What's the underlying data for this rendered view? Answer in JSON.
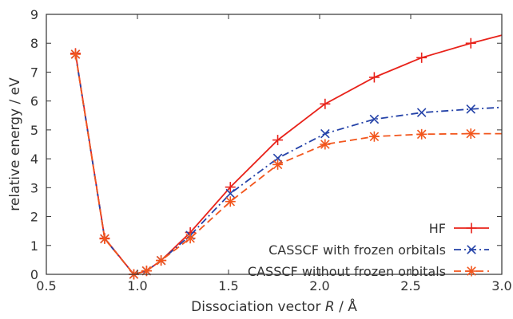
{
  "chart_data": {
    "type": "line",
    "title": "",
    "xlabel": "Dissociation vector R / Å",
    "xlabel_parts": {
      "before": "Dissociation vector ",
      "var": "R",
      "after": " / Å"
    },
    "ylabel": "relative energy / eV",
    "xlim": [
      0.5,
      3.0
    ],
    "ylim": [
      0,
      9
    ],
    "x_ticks": [
      "0.5",
      "1.0",
      "1.5",
      "2.0",
      "2.5",
      "3.0"
    ],
    "y_ticks": [
      "0",
      "1",
      "2",
      "3",
      "4",
      "5",
      "6",
      "7",
      "8",
      "9"
    ],
    "grid": false,
    "legend_position": "bottom-right",
    "series": [
      {
        "name": "HF",
        "color": "#e8221a",
        "dash": "solid",
        "marker": "plus",
        "x": [
          0.66,
          0.82,
          0.98,
          1.05,
          1.13,
          1.29,
          1.51,
          1.77,
          2.03,
          2.3,
          2.56,
          2.83,
          3.0
        ],
        "y": [
          7.65,
          1.25,
          0.0,
          0.12,
          0.48,
          1.45,
          3.02,
          4.65,
          5.9,
          6.82,
          7.5,
          8.0,
          8.28
        ]
      },
      {
        "name": "CASSCF with frozen orbitals",
        "color": "#2442a8",
        "dash": "dashdot",
        "marker": "x",
        "x": [
          0.66,
          0.82,
          0.98,
          1.05,
          1.13,
          1.29,
          1.51,
          1.77,
          2.03,
          2.3,
          2.56,
          2.83,
          3.0
        ],
        "y": [
          7.62,
          1.23,
          0.0,
          0.12,
          0.48,
          1.35,
          2.8,
          4.02,
          4.87,
          5.37,
          5.6,
          5.72,
          5.78
        ]
      },
      {
        "name": "CASSCF without frozen orbitals",
        "color": "#f2561d",
        "dash": "dashed",
        "marker": "asterisk",
        "x": [
          0.66,
          0.82,
          0.98,
          1.05,
          1.13,
          1.29,
          1.51,
          1.77,
          2.03,
          2.3,
          2.56,
          2.83,
          3.0
        ],
        "y": [
          7.62,
          1.23,
          0.0,
          0.12,
          0.48,
          1.25,
          2.52,
          3.8,
          4.5,
          4.77,
          4.85,
          4.87,
          4.87
        ]
      }
    ]
  }
}
